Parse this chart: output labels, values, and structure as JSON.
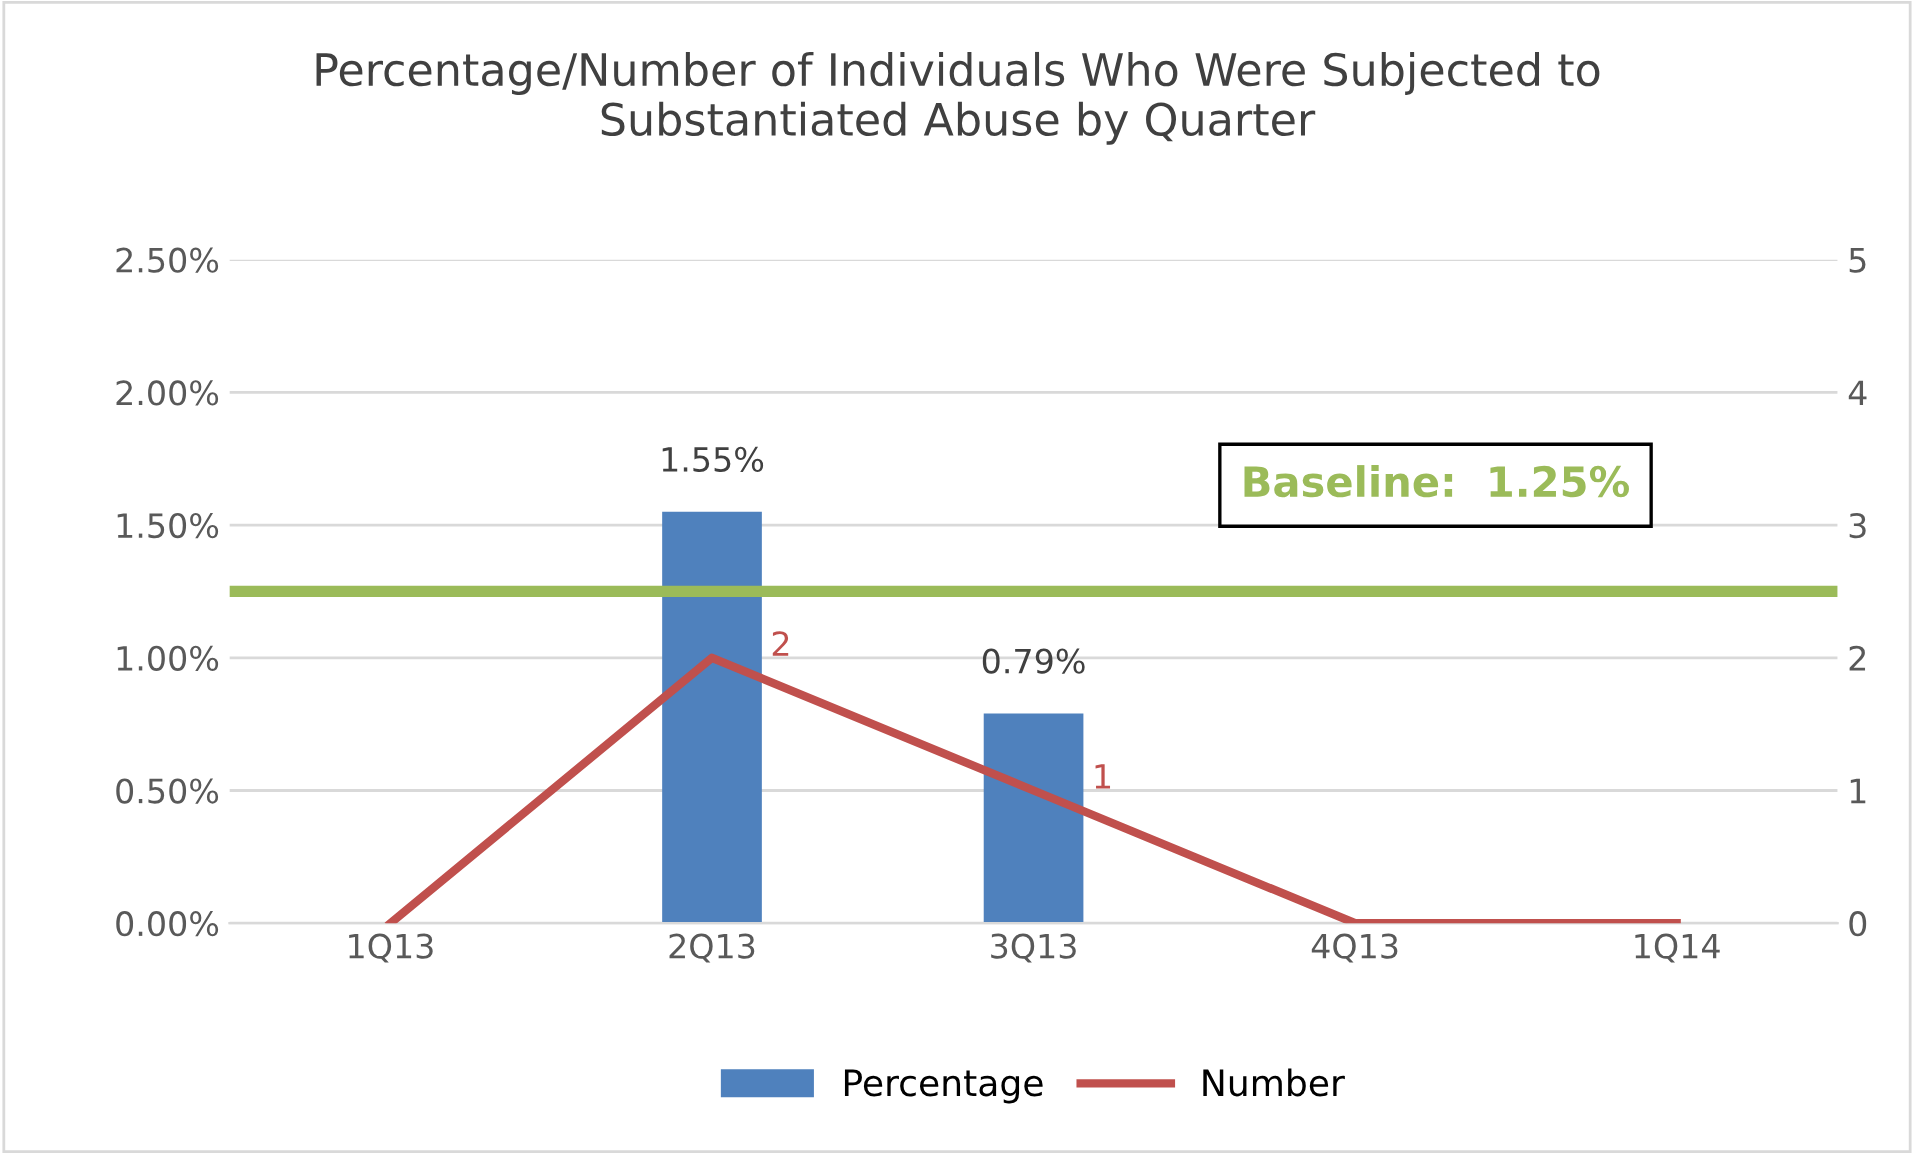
{
  "chart_data": {
    "type": "bar",
    "title": "Percentage/Number of Individuals Who Were Subjected to\nSubstantiated Abuse by Quarter",
    "categories": [
      "1Q13",
      "2Q13",
      "3Q13",
      "4Q13",
      "1Q14"
    ],
    "series": [
      {
        "name": "Percentage",
        "color": "#4f81bd",
        "values": [
          0,
          1.55,
          0.79,
          0,
          0
        ],
        "value_labels": [
          null,
          "1.55%",
          "0.79%",
          null,
          null
        ]
      },
      {
        "name": "Number",
        "type": "line",
        "axis": "y2",
        "color": "#c0504d",
        "values": [
          0,
          2,
          1,
          0,
          0
        ],
        "value_labels": [
          null,
          "2",
          "1",
          null,
          null
        ]
      }
    ],
    "ylim": [
      0,
      2.5
    ],
    "yticks": [
      {
        "value": 0,
        "label": "0.00%"
      },
      {
        "value": 0.5,
        "label": "0.50%"
      },
      {
        "value": 1,
        "label": "1.00%"
      },
      {
        "value": 1.5,
        "label": "1.50%"
      },
      {
        "value": 2,
        "label": "2.00%"
      },
      {
        "value": 2.5,
        "label": "2.50%"
      }
    ],
    "y2lim": [
      0,
      5
    ],
    "y2ticks": [
      0,
      1,
      2,
      3,
      4,
      5
    ],
    "ref_lines": [
      {
        "axis": "y",
        "value": 1.25,
        "label": "Baseline:  1.25%",
        "color": "#9bbb59"
      }
    ],
    "grid": "y",
    "legend": "bottom",
    "marker": "none",
    "line_style": "solid"
  }
}
